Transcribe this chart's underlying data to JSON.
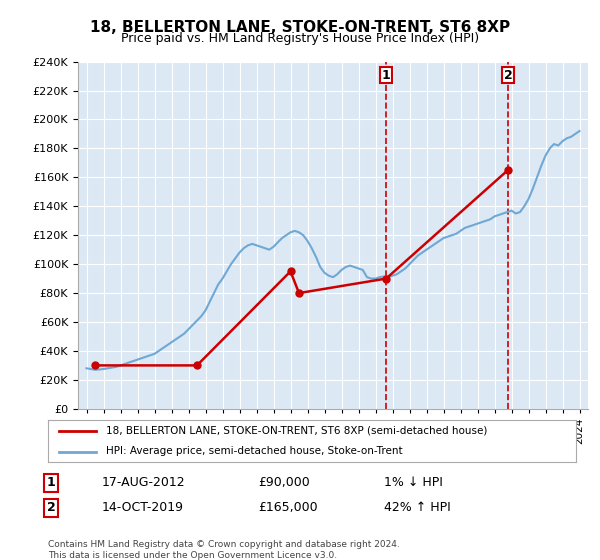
{
  "title": "18, BELLERTON LANE, STOKE-ON-TRENT, ST6 8XP",
  "subtitle": "Price paid vs. HM Land Registry's House Price Index (HPI)",
  "xlabel": "",
  "ylabel": "",
  "ylim": [
    0,
    240000
  ],
  "yticks": [
    0,
    20000,
    40000,
    60000,
    80000,
    100000,
    120000,
    140000,
    160000,
    180000,
    200000,
    220000,
    240000
  ],
  "xlim_start": 1994.5,
  "xlim_end": 2024.5,
  "bg_color": "#dce9f5",
  "fig_bg_color": "#ffffff",
  "grid_color": "#ffffff",
  "hpi_line_color": "#6fa8d4",
  "price_line_color": "#cc0000",
  "vline_color": "#cc0000",
  "marker1_year": 2012.625,
  "marker2_year": 2019.79,
  "marker1_price": 90000,
  "marker2_price": 165000,
  "legend_label1": "18, BELLERTON LANE, STOKE-ON-TRENT, ST6 8XP (semi-detached house)",
  "legend_label2": "HPI: Average price, semi-detached house, Stoke-on-Trent",
  "annotation1_date": "17-AUG-2012",
  "annotation1_price": "£90,000",
  "annotation1_hpi": "1% ↓ HPI",
  "annotation2_date": "14-OCT-2019",
  "annotation2_price": "£165,000",
  "annotation2_hpi": "42% ↑ HPI",
  "footnote": "Contains HM Land Registry data © Crown copyright and database right 2024.\nThis data is licensed under the Open Government Licence v3.0.",
  "hpi_data": {
    "years": [
      1995.0,
      1995.25,
      1995.5,
      1995.75,
      1996.0,
      1996.25,
      1996.5,
      1996.75,
      1997.0,
      1997.25,
      1997.5,
      1997.75,
      1998.0,
      1998.25,
      1998.5,
      1998.75,
      1999.0,
      1999.25,
      1999.5,
      1999.75,
      2000.0,
      2000.25,
      2000.5,
      2000.75,
      2001.0,
      2001.25,
      2001.5,
      2001.75,
      2002.0,
      2002.25,
      2002.5,
      2002.75,
      2003.0,
      2003.25,
      2003.5,
      2003.75,
      2004.0,
      2004.25,
      2004.5,
      2004.75,
      2005.0,
      2005.25,
      2005.5,
      2005.75,
      2006.0,
      2006.25,
      2006.5,
      2006.75,
      2007.0,
      2007.25,
      2007.5,
      2007.75,
      2008.0,
      2008.25,
      2008.5,
      2008.75,
      2009.0,
      2009.25,
      2009.5,
      2009.75,
      2010.0,
      2010.25,
      2010.5,
      2010.75,
      2011.0,
      2011.25,
      2011.5,
      2011.75,
      2012.0,
      2012.25,
      2012.5,
      2012.75,
      2013.0,
      2013.25,
      2013.5,
      2013.75,
      2014.0,
      2014.25,
      2014.5,
      2014.75,
      2015.0,
      2015.25,
      2015.5,
      2015.75,
      2016.0,
      2016.25,
      2016.5,
      2016.75,
      2017.0,
      2017.25,
      2017.5,
      2017.75,
      2018.0,
      2018.25,
      2018.5,
      2018.75,
      2019.0,
      2019.25,
      2019.5,
      2019.75,
      2020.0,
      2020.25,
      2020.5,
      2020.75,
      2021.0,
      2021.25,
      2021.5,
      2021.75,
      2022.0,
      2022.25,
      2022.5,
      2022.75,
      2023.0,
      2023.25,
      2023.5,
      2023.75,
      2024.0
    ],
    "values": [
      28000,
      27500,
      27000,
      27200,
      27500,
      28000,
      28500,
      29000,
      30000,
      31000,
      32000,
      33000,
      34000,
      35000,
      36000,
      37000,
      38000,
      40000,
      42000,
      44000,
      46000,
      48000,
      50000,
      52000,
      55000,
      58000,
      61000,
      64000,
      68000,
      74000,
      80000,
      86000,
      90000,
      95000,
      100000,
      104000,
      108000,
      111000,
      113000,
      114000,
      113000,
      112000,
      111000,
      110000,
      112000,
      115000,
      118000,
      120000,
      122000,
      123000,
      122000,
      120000,
      116000,
      111000,
      105000,
      98000,
      94000,
      92000,
      91000,
      93000,
      96000,
      98000,
      99000,
      98000,
      97000,
      96000,
      91000,
      90000,
      90000,
      91000,
      91500,
      91000,
      92000,
      93000,
      95000,
      97000,
      100000,
      103000,
      106000,
      108000,
      110000,
      112000,
      114000,
      116000,
      118000,
      119000,
      120000,
      121000,
      123000,
      125000,
      126000,
      127000,
      128000,
      129000,
      130000,
      131000,
      133000,
      134000,
      135000,
      136000,
      137000,
      135000,
      136000,
      140000,
      145000,
      152000,
      160000,
      168000,
      175000,
      180000,
      183000,
      182000,
      185000,
      187000,
      188000,
      190000,
      192000
    ]
  },
  "price_data": {
    "years": [
      1995.5,
      2001.5,
      2007.0,
      2007.5,
      2012.625,
      2019.79
    ],
    "values": [
      30000,
      30000,
      95000,
      80000,
      90000,
      165000
    ]
  },
  "xtick_years": [
    1995,
    1996,
    1997,
    1998,
    1999,
    2000,
    2001,
    2002,
    2003,
    2004,
    2005,
    2006,
    2007,
    2008,
    2009,
    2010,
    2011,
    2012,
    2013,
    2014,
    2015,
    2016,
    2017,
    2018,
    2019,
    2020,
    2021,
    2022,
    2023,
    2024
  ]
}
